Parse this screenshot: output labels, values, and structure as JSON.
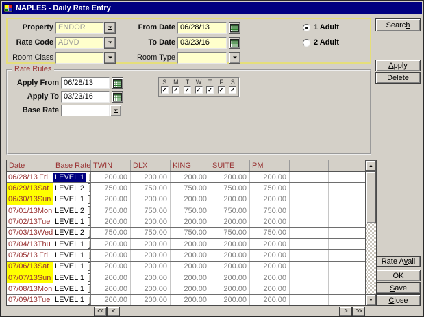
{
  "window": {
    "title": "NAPLES - Daily Rate Entry"
  },
  "top_form": {
    "property_label": "Property",
    "property_value": "ENDOR",
    "rate_code_label": "Rate Code",
    "rate_code_value": "ADVD",
    "room_class_label": "Room Class",
    "room_class_value": "",
    "from_date_label": "From Date",
    "from_date_value": "06/28/13",
    "to_date_label": "To Date",
    "to_date_value": "03/23/16",
    "room_type_label": "Room Type",
    "room_type_value": "",
    "adult_options": [
      {
        "label": "1 Adult",
        "selected": true
      },
      {
        "label": "2 Adult",
        "selected": false
      }
    ]
  },
  "actions": {
    "search": {
      "label": "Search",
      "mnemonic": 5
    },
    "apply": {
      "label": "Apply",
      "mnemonic": 0
    },
    "delete": {
      "label": "Delete",
      "mnemonic": 0
    },
    "rate_avail": {
      "label": "Rate Avail",
      "mnemonic": 6
    },
    "ok": {
      "label": "OK",
      "mnemonic": 0
    },
    "save": {
      "label": "Save",
      "mnemonic": 0
    },
    "close": {
      "label": "Close",
      "mnemonic": 0
    }
  },
  "rate_rules": {
    "title": "Rate Rules",
    "apply_from_label": "Apply From",
    "apply_from_value": "06/28/13",
    "apply_to_label": "Apply To",
    "apply_to_value": "03/23/16",
    "base_rate_label": "Base Rate",
    "base_rate_value": "",
    "days": [
      {
        "label": "S",
        "checked": true
      },
      {
        "label": "M",
        "checked": true
      },
      {
        "label": "T",
        "checked": true
      },
      {
        "label": "W",
        "checked": true
      },
      {
        "label": "T",
        "checked": true
      },
      {
        "label": "F",
        "checked": true
      },
      {
        "label": "S",
        "checked": true
      }
    ]
  },
  "table": {
    "columns": [
      "Date",
      "Base Rate",
      "TWIN",
      "DLX",
      "KING",
      "SUITE",
      "PM",
      "",
      ""
    ],
    "nav": {
      "first": "<<",
      "prev": "<",
      "next": ">",
      "last": ">>"
    },
    "rows": [
      {
        "date": "06/28/13",
        "day": "Fri",
        "level": "LEVEL 1",
        "weekend": false,
        "selected": true,
        "values": [
          "200.00",
          "200.00",
          "200.00",
          "200.00",
          "200.00"
        ]
      },
      {
        "date": "06/29/13",
        "day": "Sat",
        "level": "LEVEL 2",
        "weekend": true,
        "selected": false,
        "values": [
          "750.00",
          "750.00",
          "750.00",
          "750.00",
          "750.00"
        ]
      },
      {
        "date": "06/30/13",
        "day": "Sun",
        "level": "LEVEL 1",
        "weekend": true,
        "selected": false,
        "values": [
          "200.00",
          "200.00",
          "200.00",
          "200.00",
          "200.00"
        ]
      },
      {
        "date": "07/01/13",
        "day": "Mon",
        "level": "LEVEL 2",
        "weekend": false,
        "selected": false,
        "values": [
          "750.00",
          "750.00",
          "750.00",
          "750.00",
          "750.00"
        ]
      },
      {
        "date": "07/02/13",
        "day": "Tue",
        "level": "LEVEL 1",
        "weekend": false,
        "selected": false,
        "values": [
          "200.00",
          "200.00",
          "200.00",
          "200.00",
          "200.00"
        ]
      },
      {
        "date": "07/03/13",
        "day": "Wed",
        "level": "LEVEL 2",
        "weekend": false,
        "selected": false,
        "values": [
          "750.00",
          "750.00",
          "750.00",
          "750.00",
          "750.00"
        ]
      },
      {
        "date": "07/04/13",
        "day": "Thu",
        "level": "LEVEL 1",
        "weekend": false,
        "selected": false,
        "values": [
          "200.00",
          "200.00",
          "200.00",
          "200.00",
          "200.00"
        ]
      },
      {
        "date": "07/05/13",
        "day": "Fri",
        "level": "LEVEL 1",
        "weekend": false,
        "selected": false,
        "values": [
          "200.00",
          "200.00",
          "200.00",
          "200.00",
          "200.00"
        ]
      },
      {
        "date": "07/06/13",
        "day": "Sat",
        "level": "LEVEL 1",
        "weekend": true,
        "selected": false,
        "values": [
          "200.00",
          "200.00",
          "200.00",
          "200.00",
          "200.00"
        ]
      },
      {
        "date": "07/07/13",
        "day": "Sun",
        "level": "LEVEL 1",
        "weekend": true,
        "selected": false,
        "values": [
          "200.00",
          "200.00",
          "200.00",
          "200.00",
          "200.00"
        ]
      },
      {
        "date": "07/08/13",
        "day": "Mon",
        "level": "LEVEL 1",
        "weekend": false,
        "selected": false,
        "values": [
          "200.00",
          "200.00",
          "200.00",
          "200.00",
          "200.00"
        ]
      },
      {
        "date": "07/09/13",
        "day": "Tue",
        "level": "LEVEL 1",
        "weekend": false,
        "selected": false,
        "values": [
          "200.00",
          "200.00",
          "200.00",
          "200.00",
          "200.00"
        ]
      }
    ]
  },
  "colors": {
    "titlebar": "#000080",
    "panel_border": "#e5de7b",
    "field_bg": "#ffffcc",
    "accent_maroon": "#993333",
    "weekend_bg": "#ffff00",
    "selection_bg": "#000080",
    "value_text": "#808080"
  }
}
